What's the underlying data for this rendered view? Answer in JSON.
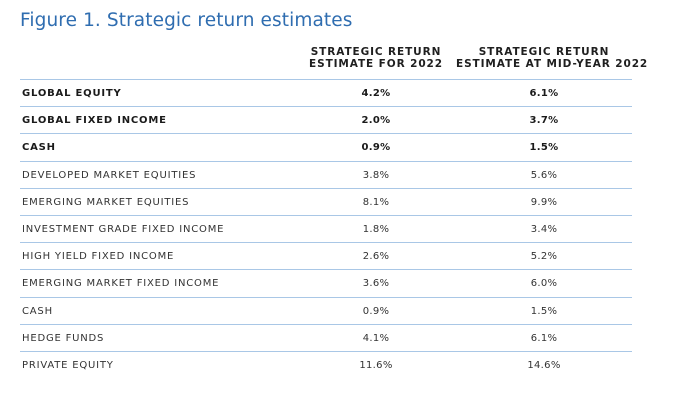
{
  "figure": {
    "title": "Figure 1. Strategic return estimates",
    "columns": [
      {
        "line1": "STRATEGIC RETURN",
        "line2": "ESTIMATE FOR 2022"
      },
      {
        "line1": "STRATEGIC RETURN",
        "line2": "ESTIMATE AT MID-YEAR 2022"
      }
    ],
    "rows": [
      {
        "label": "GLOBAL EQUITY",
        "v2022": "4.2%",
        "vmid": "6.1%",
        "bold": true
      },
      {
        "label": "GLOBAL FIXED INCOME",
        "v2022": "2.0%",
        "vmid": "3.7%",
        "bold": true
      },
      {
        "label": "CASH",
        "v2022": "0.9%",
        "vmid": "1.5%",
        "bold": true
      },
      {
        "label": "DEVELOPED MARKET EQUITIES",
        "v2022": "3.8%",
        "vmid": "5.6%",
        "bold": false
      },
      {
        "label": "EMERGING MARKET EQUITIES",
        "v2022": "8.1%",
        "vmid": "9.9%",
        "bold": false
      },
      {
        "label": "INVESTMENT GRADE FIXED INCOME",
        "v2022": "1.8%",
        "vmid": "3.4%",
        "bold": false
      },
      {
        "label": "HIGH YIELD FIXED INCOME",
        "v2022": "2.6%",
        "vmid": "5.2%",
        "bold": false
      },
      {
        "label": "EMERGING MARKET FIXED INCOME",
        "v2022": "3.6%",
        "vmid": "6.0%",
        "bold": false
      },
      {
        "label": "CASH",
        "v2022": "0.9%",
        "vmid": "1.5%",
        "bold": false
      },
      {
        "label": "HEDGE FUNDS",
        "v2022": "4.1%",
        "vmid": "6.1%",
        "bold": false
      },
      {
        "label": "PRIVATE EQUITY",
        "v2022": "11.6%",
        "vmid": "14.6%",
        "bold": false
      }
    ]
  }
}
